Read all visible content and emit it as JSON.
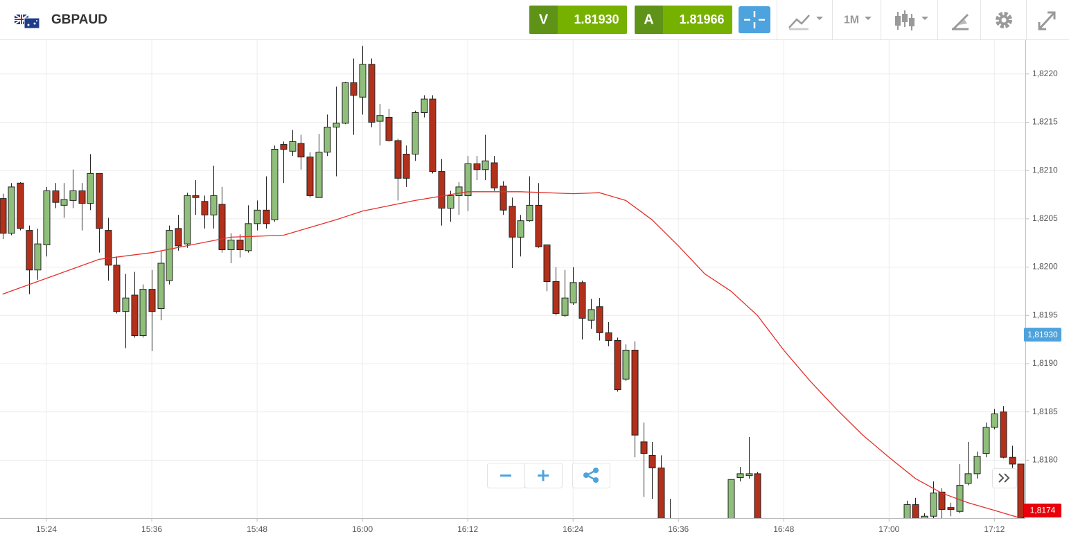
{
  "header": {
    "symbol": "GBPAUD",
    "sell": {
      "label": "V",
      "price": "1.81930"
    },
    "buy": {
      "label": "A",
      "price": "1.81966"
    },
    "timeframe": "1M"
  },
  "chart_data": {
    "type": "candlestick",
    "xlim": [
      "15:18",
      "17:16"
    ],
    "xticks": [
      "15:24",
      "15:36",
      "15:48",
      "16:00",
      "16:12",
      "16:24",
      "16:36",
      "16:48",
      "17:00",
      "17:12"
    ],
    "ylim": [
      1.8174,
      1.82235
    ],
    "yticks": [
      {
        "value": 1.818,
        "label": "1,8180"
      },
      {
        "value": 1.8185,
        "label": "1,8185"
      },
      {
        "value": 1.819,
        "label": "1,8190"
      },
      {
        "value": 1.8195,
        "label": "1,8195"
      },
      {
        "value": 1.82,
        "label": "1,8200"
      },
      {
        "value": 1.8205,
        "label": "1,8205"
      },
      {
        "value": 1.821,
        "label": "1,8210"
      },
      {
        "value": 1.8215,
        "label": "1,8215"
      },
      {
        "value": 1.822,
        "label": "1,8220"
      }
    ],
    "grid": true,
    "up_color": "#8fbf7a",
    "down_color": "#b3301b",
    "candles": {
      "x": [
        "15:19",
        "15:20",
        "15:21",
        "15:22",
        "15:23",
        "15:24",
        "15:25",
        "15:26",
        "15:27",
        "15:28",
        "15:29",
        "15:30",
        "15:31",
        "15:32",
        "15:33",
        "15:34",
        "15:35",
        "15:36",
        "15:37",
        "15:38",
        "15:39",
        "15:40",
        "15:41",
        "15:42",
        "15:43",
        "15:44",
        "15:45",
        "15:46",
        "15:47",
        "15:48",
        "15:49",
        "15:50",
        "15:51",
        "15:52",
        "15:53",
        "15:54",
        "15:55",
        "15:56",
        "15:57",
        "15:58",
        "15:59",
        "16:00",
        "16:01",
        "16:02",
        "16:03",
        "16:04",
        "16:05",
        "16:06",
        "16:07",
        "16:08",
        "16:09",
        "16:10",
        "16:11",
        "16:12",
        "16:13",
        "16:14",
        "16:15",
        "16:16",
        "16:17",
        "16:18",
        "16:19",
        "16:20",
        "16:21",
        "16:22",
        "16:23",
        "16:24",
        "16:25",
        "16:26",
        "16:27",
        "16:28",
        "16:29",
        "16:30",
        "16:31",
        "16:32",
        "16:33",
        "16:34",
        "16:35",
        "16:42",
        "16:43",
        "16:44",
        "16:45",
        "17:02",
        "17:03",
        "17:04",
        "17:05",
        "17:06",
        "17:07",
        "17:08",
        "17:09",
        "17:10",
        "17:11",
        "17:12",
        "17:13",
        "17:14",
        "17:15"
      ],
      "open": [
        1.82071,
        1.82035,
        1.82087,
        1.82038,
        1.81997,
        1.82023,
        1.82079,
        1.82064,
        1.82069,
        1.82079,
        1.82066,
        1.82097,
        1.82038,
        1.82002,
        1.81954,
        1.81971,
        1.81929,
        1.81977,
        1.81957,
        1.81986,
        1.8204,
        1.82024,
        1.82074,
        1.82068,
        1.82054,
        1.82065,
        1.82018,
        1.82028,
        1.82017,
        1.82045,
        1.82059,
        1.82049,
        1.82127,
        1.8212,
        1.82128,
        1.82114,
        1.82072,
        1.82119,
        1.82145,
        1.82149,
        1.82191,
        1.82176,
        1.8221,
        1.82151,
        1.82155,
        1.82131,
        1.82117,
        1.82117,
        1.8216,
        1.82174,
        1.82099,
        1.82061,
        1.82074,
        1.82074,
        1.82107,
        1.82101,
        1.82108,
        1.82084,
        1.82063,
        1.82031,
        1.82048,
        1.82064,
        1.82023,
        1.81985,
        1.8195,
        1.81963,
        1.81984,
        1.81945,
        1.81959,
        1.81932,
        1.81924,
        1.81884,
        1.81914,
        1.81819,
        1.81805,
        1.81792,
        1.8172,
        1.8173,
        1.81782,
        1.81784,
        1.81786,
        1.81728,
        1.81754,
        1.8173,
        1.81742,
        1.81767,
        1.81751,
        1.81747,
        1.81776,
        1.81786,
        1.81807,
        1.81834,
        1.8185,
        1.81803,
        1.81796
      ],
      "high": [
        1.82076,
        1.82087,
        1.82088,
        1.82043,
        1.8204,
        1.82083,
        1.82087,
        1.82087,
        1.82101,
        1.82087,
        1.82117,
        1.82097,
        1.82051,
        1.82011,
        1.81993,
        1.81995,
        1.81982,
        1.81997,
        1.82017,
        1.82043,
        1.82054,
        1.82077,
        1.8209,
        1.82074,
        1.82105,
        1.82083,
        1.82035,
        1.82034,
        1.82064,
        1.82069,
        1.82094,
        1.82126,
        1.8213,
        1.82142,
        1.82137,
        1.82119,
        1.82138,
        1.82158,
        1.82187,
        1.82192,
        1.82216,
        1.82229,
        1.82216,
        1.82169,
        1.82164,
        1.82133,
        1.82126,
        1.82162,
        1.82178,
        1.82178,
        1.82112,
        1.82079,
        1.82088,
        1.82115,
        1.82115,
        1.82137,
        1.82115,
        1.82089,
        1.82072,
        1.82054,
        1.82094,
        1.82087,
        1.82023,
        1.82,
        1.81997,
        1.82,
        1.81986,
        1.81967,
        1.81968,
        1.81943,
        1.81927,
        1.8192,
        1.81923,
        1.81839,
        1.81819,
        1.81805,
        1.8176,
        1.8178,
        1.81793,
        1.81824,
        1.81788,
        1.81758,
        1.81761,
        1.81745,
        1.81778,
        1.81771,
        1.81756,
        1.81796,
        1.81819,
        1.81809,
        1.81839,
        1.81853,
        1.81856,
        1.81815,
        1.81796
      ],
      "low": [
        1.82029,
        1.82033,
        1.82038,
        1.81972,
        1.81987,
        1.82011,
        1.82061,
        1.82051,
        1.82061,
        1.82038,
        1.82059,
        1.82015,
        1.81986,
        1.81952,
        1.81916,
        1.81927,
        1.81927,
        1.81913,
        1.81945,
        1.81982,
        1.82017,
        1.8202,
        1.82054,
        1.8204,
        1.8204,
        1.82015,
        1.82004,
        1.8201,
        1.82015,
        1.82038,
        1.8204,
        1.82047,
        1.82087,
        1.82115,
        1.82101,
        1.82072,
        1.82072,
        1.82115,
        1.82094,
        1.82148,
        1.82137,
        1.82158,
        1.82145,
        1.82126,
        1.8213,
        1.82069,
        1.82083,
        1.8211,
        1.82155,
        1.82097,
        1.82043,
        1.82047,
        1.82054,
        1.82058,
        1.8209,
        1.8209,
        1.82079,
        1.82054,
        1.81999,
        1.82011,
        1.82047,
        1.8202,
        1.81975,
        1.8195,
        1.81948,
        1.81961,
        1.81925,
        1.81936,
        1.81924,
        1.81918,
        1.81871,
        1.81882,
        1.81803,
        1.81762,
        1.8176,
        1.81712,
        1.817,
        1.81725,
        1.81778,
        1.81781,
        1.81695,
        1.8172,
        1.81725,
        1.81725,
        1.81735,
        1.81735,
        1.81742,
        1.81745,
        1.81774,
        1.81781,
        1.81803,
        1.81832,
        1.81802,
        1.81792,
        1.81735
      ],
      "close": [
        1.82035,
        1.82083,
        1.8204,
        1.81997,
        1.82024,
        1.82079,
        1.82067,
        1.8207,
        1.82079,
        1.82066,
        1.82097,
        1.8204,
        1.82002,
        1.81954,
        1.81968,
        1.81929,
        1.81977,
        1.81954,
        1.82004,
        1.82038,
        1.82022,
        1.82074,
        1.82072,
        1.82054,
        1.82074,
        1.82018,
        1.82028,
        1.82018,
        1.82045,
        1.82059,
        1.82045,
        1.82122,
        1.82122,
        1.8213,
        1.82114,
        1.82074,
        1.82119,
        1.82145,
        1.82149,
        1.82191,
        1.82178,
        1.8221,
        1.8215,
        1.82157,
        1.82131,
        1.82092,
        1.82092,
        1.8216,
        1.82174,
        1.82099,
        1.82061,
        1.82074,
        1.82083,
        1.82107,
        1.82101,
        1.8211,
        1.82082,
        1.82059,
        1.82031,
        1.82048,
        1.82064,
        1.82021,
        1.81985,
        1.81952,
        1.81968,
        1.81984,
        1.81947,
        1.81956,
        1.81932,
        1.81924,
        1.81873,
        1.81914,
        1.81826,
        1.81807,
        1.81792,
        1.8172,
        1.8171,
        1.8178,
        1.81786,
        1.81786,
        1.817,
        1.81754,
        1.8173,
        1.81742,
        1.81766,
        1.81749,
        1.81749,
        1.81774,
        1.81786,
        1.81804,
        1.81834,
        1.81848,
        1.81803,
        1.81796,
        1.8174
      ]
    },
    "moving_average": {
      "color": "#e3302a",
      "x": [
        "15:19",
        "15:30",
        "15:36",
        "15:45",
        "15:51",
        "15:57",
        "16:00",
        "16:06",
        "16:12",
        "16:18",
        "16:24",
        "16:27",
        "16:30",
        "16:33",
        "16:36",
        "16:39",
        "16:42",
        "16:45",
        "16:48",
        "16:51",
        "16:54",
        "16:57",
        "17:00",
        "17:03",
        "17:06",
        "17:09",
        "17:12",
        "17:15"
      ],
      "values": [
        1.81972,
        1.82008,
        1.82015,
        1.82031,
        1.82033,
        1.82049,
        1.82058,
        1.82069,
        1.82078,
        1.82078,
        1.82076,
        1.82077,
        1.82069,
        1.82049,
        1.82022,
        1.81993,
        1.81975,
        1.8195,
        1.81914,
        1.81882,
        1.81853,
        1.81826,
        1.81803,
        1.81781,
        1.81766,
        1.81756,
        1.81748,
        1.8174
      ]
    },
    "price_tags": [
      {
        "value": 1.8193,
        "label": "1,81930",
        "color": "#4ea3dc"
      },
      {
        "value": 1.8174,
        "label": "1,8174",
        "color": "#e8000b"
      }
    ]
  }
}
